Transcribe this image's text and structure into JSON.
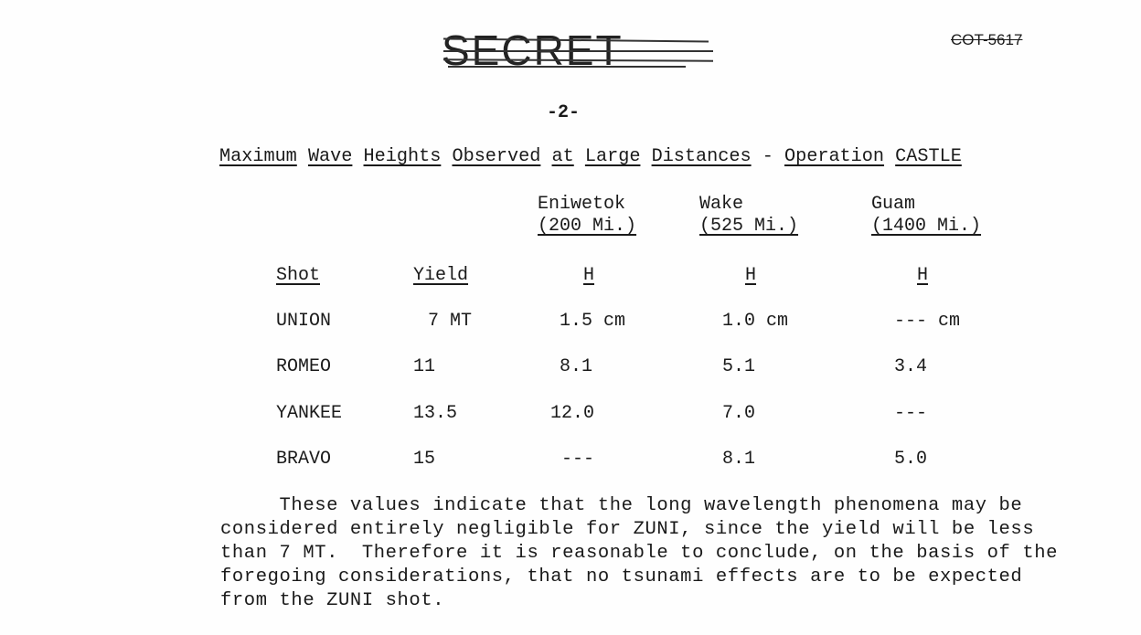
{
  "header": {
    "classification": "SECRET",
    "document_number": "COT-5617",
    "page_number": "-2-"
  },
  "table": {
    "title": [
      "Maximum",
      "Wave",
      "Heights",
      "Observed",
      "at",
      "Large",
      "Distances",
      "-",
      "Operation",
      "CASTLE"
    ],
    "locations": [
      {
        "name": "Eniwetok",
        "distance": "(200 Mi.)"
      },
      {
        "name": "Wake",
        "distance": "(525 Mi.)"
      },
      {
        "name": "Guam",
        "distance": "(1400 Mi.)"
      }
    ],
    "headers": {
      "shot": "Shot",
      "yield": "Yield",
      "h": "H"
    },
    "rows": [
      {
        "shot": "UNION",
        "yield": "7 MT",
        "eniwetok": "1.5 cm",
        "wake": "1.0 cm",
        "guam": "--- cm"
      },
      {
        "shot": "ROMEO",
        "yield": "11",
        "eniwetok": "8.1",
        "wake": "5.1",
        "guam": "3.4"
      },
      {
        "shot": "YANKEE",
        "yield": "13.5",
        "eniwetok": "12.0",
        "wake": "7.0",
        "guam": "---"
      },
      {
        "shot": "BRAVO",
        "yield": "15",
        "eniwetok": "---",
        "wake": "8.1",
        "guam": "5.0"
      }
    ]
  },
  "paragraph": "     These values indicate that the long wavelength phenomena may be\nconsidered entirely negligible for ZUNI, since the yield will be less\nthan 7 MT.  Therefore it is reasonable to conclude, on the basis of the\nforegoing considerations, that no tsunami effects are to be expected\nfrom the ZUNI shot."
}
